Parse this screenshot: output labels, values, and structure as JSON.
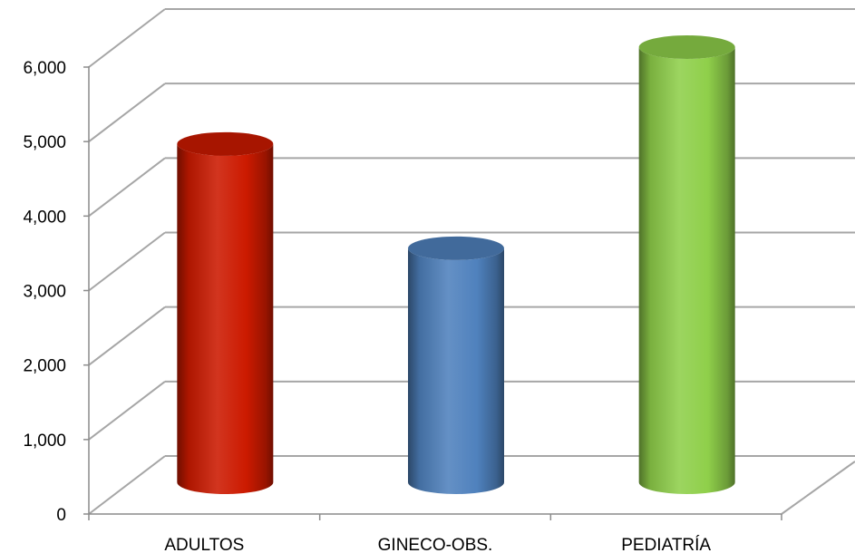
{
  "chart_data": {
    "type": "bar",
    "categories": [
      "ADULTOS",
      "GINECO-OBS.",
      "PEDIATRÍA"
    ],
    "values": [
      4700,
      3300,
      6000
    ],
    "colors": [
      "#cc1a00",
      "#4f81bd",
      "#8fcf4a"
    ],
    "yticks": [
      "0",
      "1,000",
      "2,000",
      "3,000",
      "4,000",
      "5,000",
      "6,000"
    ],
    "ylim": [
      0,
      6000
    ],
    "grid": true,
    "three_d": true
  }
}
